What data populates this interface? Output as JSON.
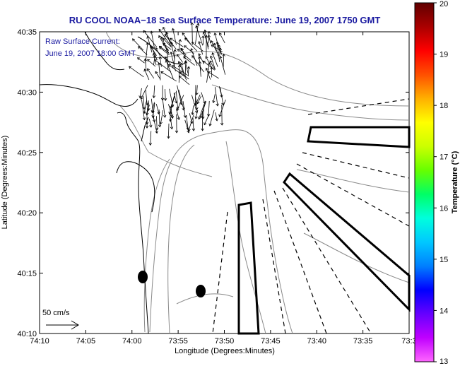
{
  "title": "RU COOL   NOAA−18  Sea Surface Temperature:  June 19, 2007 1750 GMT",
  "current_label": {
    "line1": "Raw Surface Current:",
    "line2": "June 19, 2007 18:00 GMT"
  },
  "scale_bar_label": "50 cm/s",
  "x_axis": {
    "label": "Longitude (Degrees:Minutes)",
    "ticks": [
      "74:10",
      "74:05",
      "74:00",
      "73:55",
      "73:50",
      "73:45",
      "73:40",
      "73:35",
      "73:3"
    ]
  },
  "y_axis": {
    "label": "Latitude (Degrees:Minutes)",
    "ticks": [
      "40:35",
      "40:30",
      "40:25",
      "40:20",
      "40:15",
      "40:10"
    ]
  },
  "colorbar": {
    "label": "Temperature (°C)",
    "ticks": [
      "20",
      "19",
      "18",
      "17",
      "16",
      "15",
      "14",
      "13"
    ],
    "min": 13,
    "max": 20,
    "colors": [
      "#ff66ff",
      "#c000ff",
      "#6600ff",
      "#0000ff",
      "#0080ff",
      "#00c8ff",
      "#00ffdd",
      "#00ff66",
      "#66ff00",
      "#ccff00",
      "#ffff00",
      "#ffb000",
      "#ff5000",
      "#ff0000",
      "#aa0000",
      "#600000"
    ]
  },
  "colors": {
    "title": "#1a1aa0",
    "annotation": "#1a1aa0",
    "coast": "#000000",
    "bathymetry": "#888888"
  }
}
